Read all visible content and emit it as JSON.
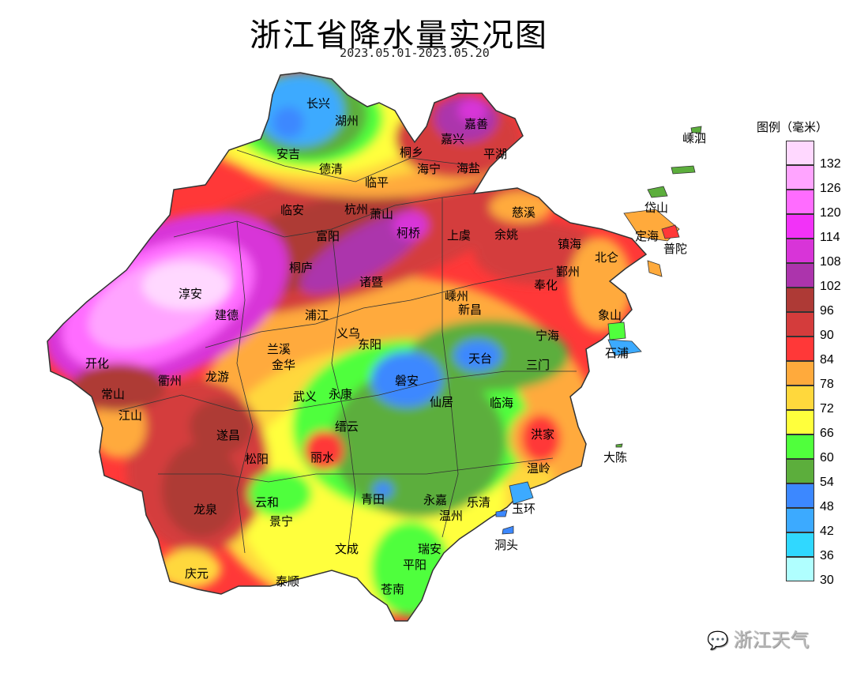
{
  "title": "浙江省降水量实况图",
  "subtitle": "2023.05.01-2023.05.20",
  "legend": {
    "title": "图例（毫米）",
    "items": [
      {
        "color": "#ffd8ff",
        "value": "132"
      },
      {
        "color": "#ffa4ff",
        "value": "126"
      },
      {
        "color": "#ff6cff",
        "value": "120"
      },
      {
        "color": "#f232f8",
        "value": "114"
      },
      {
        "color": "#d834d8",
        "value": "108"
      },
      {
        "color": "#ac34ac",
        "value": "102"
      },
      {
        "color": "#ae3a36",
        "value": "96"
      },
      {
        "color": "#d43c3c",
        "value": "90"
      },
      {
        "color": "#ff3838",
        "value": "84"
      },
      {
        "color": "#ffaa3c",
        "value": "78"
      },
      {
        "color": "#ffd83c",
        "value": "72"
      },
      {
        "color": "#ffff3c",
        "value": "66"
      },
      {
        "color": "#50ff3c",
        "value": "60"
      },
      {
        "color": "#5cae3c",
        "value": "54"
      },
      {
        "color": "#3c88ff",
        "value": "48"
      },
      {
        "color": "#3caaff",
        "value": "42"
      },
      {
        "color": "#30d8ff",
        "value": "36"
      },
      {
        "color": "#b0ffff",
        "value": "30"
      }
    ]
  },
  "cities": [
    "长兴",
    "湖州",
    "安吉",
    "德清",
    "桐乡",
    "嘉兴",
    "嘉善",
    "平湖",
    "海宁",
    "海盐",
    "临平",
    "临安",
    "杭州",
    "萧山",
    "柯桥",
    "上虞",
    "慈溪",
    "余姚",
    "镇海",
    "北仑",
    "鄞州",
    "奉化",
    "富阳",
    "桐庐",
    "诸暨",
    "淳安",
    "建德",
    "浦江",
    "嵊州",
    "新昌",
    "象山",
    "石浦",
    "宁海",
    "义乌",
    "东阳",
    "兰溪",
    "开化",
    "衢州",
    "龙游",
    "金华",
    "磐安",
    "天台",
    "三门",
    "常山",
    "江山",
    "武义",
    "永康",
    "仙居",
    "临海",
    "遂昌",
    "缙云",
    "丽水",
    "松阳",
    "洪家",
    "温岭",
    "大陈",
    "龙泉",
    "云和",
    "景宁",
    "青田",
    "永嘉",
    "温州",
    "乐清",
    "玉环",
    "洞头",
    "庆元",
    "文成",
    "泰顺",
    "瑞安",
    "平阳",
    "苍南",
    "嵊泗",
    "岱山",
    "定海",
    "普陀"
  ],
  "watermark": "浙江天气"
}
